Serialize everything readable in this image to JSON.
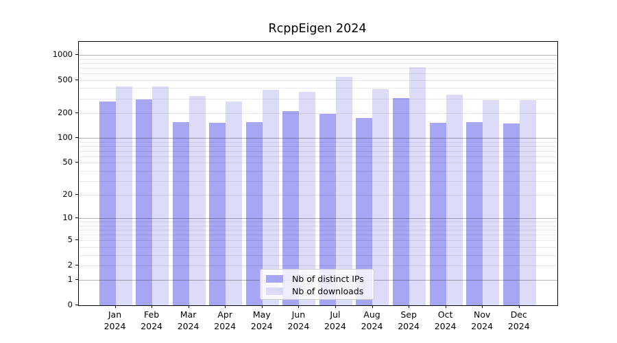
{
  "chart_data": {
    "type": "bar",
    "title": "RcppEigen 2024",
    "categories": [
      "Jan",
      "Feb",
      "Mar",
      "Apr",
      "May",
      "Jun",
      "Jul",
      "Aug",
      "Sep",
      "Oct",
      "Nov",
      "Dec"
    ],
    "year_label": "2024",
    "series": [
      {
        "name": "Nb of distinct IPs",
        "color": "#a6a6f4",
        "values": [
          275,
          290,
          155,
          153,
          156,
          210,
          196,
          175,
          303,
          153,
          156,
          150
        ]
      },
      {
        "name": "Nb of downloads",
        "color": "#dcdcf9",
        "values": [
          420,
          422,
          320,
          275,
          380,
          358,
          545,
          388,
          710,
          333,
          287,
          288
        ]
      }
    ],
    "xlabel": "",
    "ylabel": "",
    "yscale": "log1p",
    "yticks": [
      0,
      1,
      2,
      5,
      10,
      20,
      50,
      100,
      200,
      500,
      1000
    ],
    "ylim": [
      0,
      1430
    ],
    "grid": "horizontal, log minor + major decade lines",
    "legend_position": "inside lower-center"
  }
}
